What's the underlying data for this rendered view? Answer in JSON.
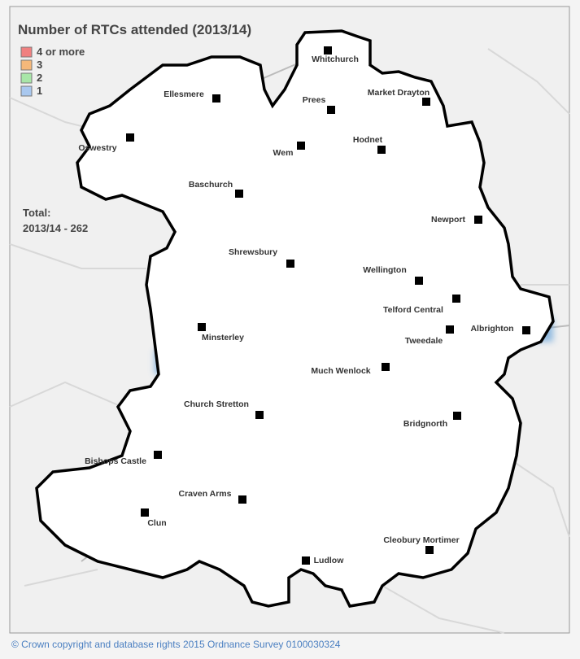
{
  "header": {
    "title": "Number of RTCs attended (2013/14)"
  },
  "legend": [
    {
      "label": "4 or more",
      "color": "#f08080"
    },
    {
      "label": "3",
      "color": "#f5b87a"
    },
    {
      "label": "2",
      "color": "#a8e6a8"
    },
    {
      "label": "1",
      "color": "#a9c8ef"
    }
  ],
  "total": {
    "label": "Total:",
    "text": "2013/14 - 262"
  },
  "stations": [
    "Whitchurch",
    "Ellesmere",
    "Prees",
    "Market Drayton",
    "Oswestry",
    "Wem",
    "Hodnet",
    "Baschurch",
    "Newport",
    "Shrewsbury",
    "Wellington",
    "Telford Central",
    "Minsterley",
    "Tweedale",
    "Albrighton",
    "Much Wenlock",
    "Church Stretton",
    "Bridgnorth",
    "Bishops Castle",
    "Craven Arms",
    "Clun",
    "Cleobury Mortimer",
    "Ludlow"
  ],
  "footer": {
    "copyright": "© Crown copyright and database rights 2015 Ordnance Survey 0100030324"
  }
}
